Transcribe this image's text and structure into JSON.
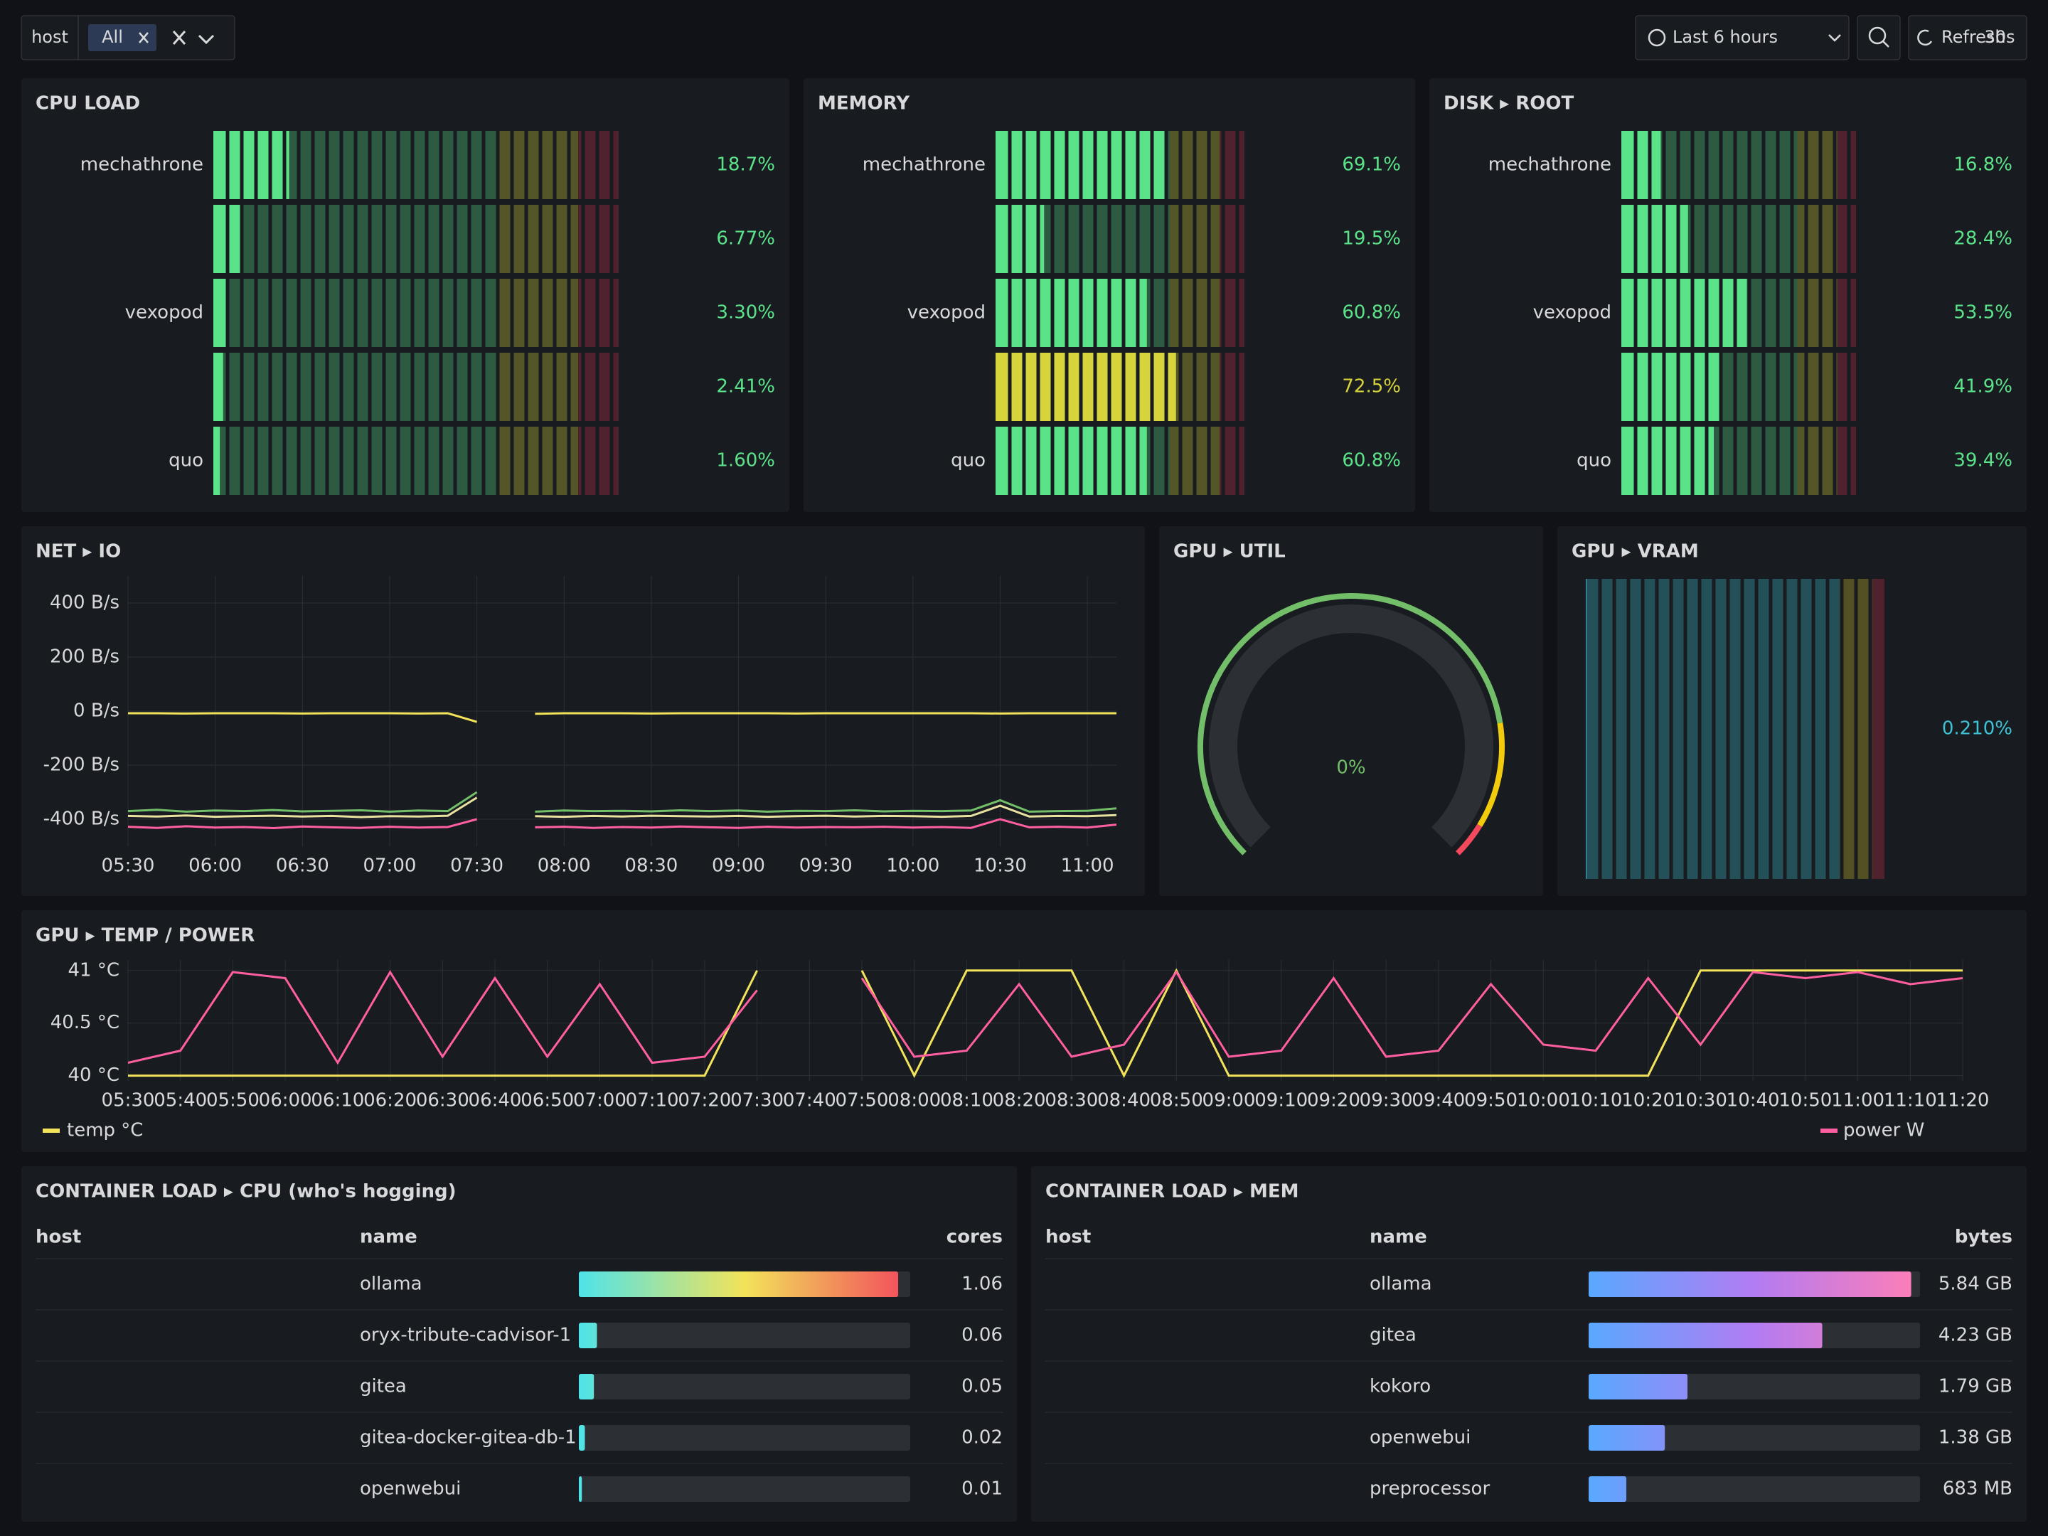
{
  "controls": {
    "filter": {
      "label": "host",
      "value": "All"
    },
    "time_range": "Last 6 hours",
    "refresh": "Refresh",
    "interval": "30s"
  },
  "chart_data": [
    {
      "type": "bargauge",
      "title": "CPU LOAD",
      "categories": [
        "mechathrone",
        null,
        "vexopod",
        null,
        "quo"
      ],
      "values": [
        18.7,
        6.77,
        3.3,
        2.41,
        1.6
      ],
      "value_labels": [
        "18.7%",
        "6.77%",
        "3.30%",
        "2.41%",
        "1.60%"
      ],
      "xlim": [
        0,
        100
      ],
      "thresholds": [
        {
          "value": 0,
          "color": "#5be38a"
        },
        {
          "value": 70,
          "color": "#d6d43a"
        },
        {
          "value": 90,
          "color": "#c4314b"
        }
      ]
    },
    {
      "type": "bargauge",
      "title": "MEMORY",
      "categories": [
        "mechathrone",
        null,
        "vexopod",
        null,
        "quo"
      ],
      "values": [
        69.1,
        19.5,
        60.8,
        72.5,
        60.8
      ],
      "value_labels": [
        "69.1%",
        "19.5%",
        "60.8%",
        "72.5%",
        "60.8%"
      ],
      "xlim": [
        0,
        100
      ],
      "thresholds": [
        {
          "value": 0,
          "color": "#5be38a"
        },
        {
          "value": 70,
          "color": "#d6d43a"
        },
        {
          "value": 90,
          "color": "#c4314b"
        }
      ]
    },
    {
      "type": "bargauge",
      "title": "DISK ▸ ROOT",
      "categories": [
        "mechathrone",
        null,
        "vexopod",
        null,
        "quo"
      ],
      "values": [
        16.8,
        28.4,
        53.5,
        41.9,
        39.4
      ],
      "value_labels": [
        "16.8%",
        "28.4%",
        "53.5%",
        "41.9%",
        "39.4%"
      ],
      "xlim": [
        0,
        100
      ],
      "thresholds": [
        {
          "value": 0,
          "color": "#5be38a"
        },
        {
          "value": 75,
          "color": "#d6d43a"
        },
        {
          "value": 92,
          "color": "#c4314b"
        }
      ]
    },
    {
      "type": "line",
      "title": "NET ▸ IO",
      "x": [
        "05:30",
        "05:40",
        "05:50",
        "06:00",
        "06:10",
        "06:20",
        "06:30",
        "06:40",
        "06:50",
        "07:00",
        "07:10",
        "07:20",
        "07:30",
        "07:40",
        "07:50",
        "08:00",
        "08:10",
        "08:20",
        "08:30",
        "08:40",
        "08:50",
        "09:00",
        "09:10",
        "09:20",
        "09:30",
        "09:40",
        "09:50",
        "10:00",
        "10:10",
        "10:20",
        "10:30",
        "10:40",
        "10:50",
        "11:00",
        "11:10"
      ],
      "xticks": [
        "05:30",
        "06:00",
        "06:30",
        "07:00",
        "07:30",
        "08:00",
        "08:30",
        "09:00",
        "09:30",
        "10:00",
        "10:30",
        "11:00"
      ],
      "ylim": [
        -500,
        500
      ],
      "yticks": [
        {
          "value": 400,
          "label": "400 B/s"
        },
        {
          "value": 200,
          "label": "200 B/s"
        },
        {
          "value": 0,
          "label": "0 B/s"
        },
        {
          "value": -200,
          "label": "-200 B/s"
        },
        {
          "value": -400,
          "label": "-400 B/s"
        }
      ],
      "grid": true,
      "series": [
        {
          "color": "#f2e35a",
          "values": [
            -8,
            -8,
            -9,
            -8,
            -8,
            -8,
            -9,
            -8,
            -8,
            -8,
            -9,
            -8,
            -40,
            null,
            -10,
            -8,
            -8,
            -8,
            -9,
            -8,
            -8,
            -8,
            -8,
            -9,
            -8,
            -8,
            -8,
            -8,
            -8,
            -8,
            -9,
            -8,
            -8,
            -8,
            -8
          ]
        },
        {
          "color": "#73bf69",
          "values": [
            -370,
            -365,
            -372,
            -368,
            -370,
            -366,
            -371,
            -369,
            -367,
            -372,
            -368,
            -370,
            -300,
            null,
            -372,
            -368,
            -370,
            -369,
            -371,
            -367,
            -370,
            -368,
            -372,
            -369,
            -370,
            -367,
            -371,
            -369,
            -370,
            -368,
            -330,
            -372,
            -370,
            -369,
            -360
          ]
        },
        {
          "color": "#e8e2a0",
          "values": [
            -388,
            -390,
            -386,
            -391,
            -389,
            -387,
            -390,
            -388,
            -392,
            -389,
            -390,
            -387,
            -320,
            null,
            -389,
            -391,
            -388,
            -390,
            -387,
            -389,
            -390,
            -388,
            -391,
            -389,
            -387,
            -390,
            -388,
            -389,
            -391,
            -388,
            -350,
            -390,
            -388,
            -389,
            -385
          ]
        },
        {
          "color": "#ff5fa0",
          "values": [
            -428,
            -432,
            -426,
            -431,
            -429,
            -433,
            -427,
            -430,
            -432,
            -428,
            -431,
            -429,
            -400,
            null,
            -430,
            -428,
            -432,
            -429,
            -431,
            -427,
            -430,
            -432,
            -428,
            -431,
            -429,
            -430,
            -428,
            -431,
            -429,
            -432,
            -400,
            -430,
            -428,
            -431,
            -420
          ]
        }
      ]
    },
    {
      "type": "gauge",
      "title": "GPU ▸ UTIL",
      "values": [
        0
      ],
      "value_labels": [
        "0%"
      ],
      "ylim": [
        0,
        100
      ],
      "thresholds": [
        {
          "value": 0,
          "color": "#73bf69"
        },
        {
          "value": 80,
          "color": "#f2cc0c"
        },
        {
          "value": 95,
          "color": "#f2495c"
        }
      ]
    },
    {
      "type": "bargauge",
      "title": "GPU ▸ VRAM",
      "categories": [
        null
      ],
      "values": [
        0.21
      ],
      "value_labels": [
        "0.210%"
      ],
      "xlim": [
        0,
        100
      ],
      "thresholds": [
        {
          "value": 0,
          "color": "#3ec1d3"
        },
        {
          "value": 85,
          "color": "#cfc22a"
        },
        {
          "value": 96,
          "color": "#c4314b"
        }
      ]
    },
    {
      "type": "line",
      "title": "GPU ▸ TEMP / POWER",
      "categories": [
        "05:30",
        "05:40",
        "05:50",
        "06:00",
        "06:10",
        "06:20",
        "06:30",
        "06:40",
        "06:50",
        "07:00",
        "07:10",
        "07:20",
        "07:30",
        "07:40",
        "07:50",
        "08:00",
        "08:10",
        "08:20",
        "08:30",
        "08:40",
        "08:50",
        "09:00",
        "09:10",
        "09:20",
        "09:30",
        "09:40",
        "09:50",
        "10:00",
        "10:10",
        "10:20",
        "10:30",
        "10:40",
        "10:50",
        "11:00",
        "11:10",
        "11:20"
      ],
      "ylim": [
        39.95,
        41.1
      ],
      "yticks": [
        {
          "value": 41,
          "label": "41 °C"
        },
        {
          "value": 40.5,
          "label": "40.5 °C"
        },
        {
          "value": 40,
          "label": "40 °C"
        }
      ],
      "y2lim": [
        0,
        20
      ],
      "grid": true,
      "series": [
        {
          "name": "temp °C",
          "color": "#f2e35a",
          "values": [
            40,
            40,
            40,
            40,
            40,
            40,
            40,
            40,
            40,
            40,
            40,
            40,
            41,
            null,
            41,
            40,
            41,
            41,
            41,
            40,
            41,
            40,
            40,
            40,
            40,
            40,
            40,
            40,
            40,
            40,
            41,
            41,
            41,
            41,
            41,
            41
          ]
        },
        {
          "name": "power W",
          "color": "#ff5fa0",
          "axis": "y2",
          "values": [
            3,
            5,
            18,
            17,
            3,
            18,
            4,
            17,
            4,
            16,
            3,
            4,
            15,
            null,
            17,
            4,
            5,
            16,
            4,
            6,
            18,
            4,
            5,
            17,
            4,
            5,
            16,
            6,
            5,
            17,
            6,
            18,
            17,
            18,
            16,
            17
          ]
        }
      ]
    },
    {
      "type": "table",
      "title": "CONTAINER LOAD ▸ CPU (who's hogging)",
      "columns": [
        "host",
        "name",
        "cores"
      ],
      "categories": [
        "ollama",
        "oryx-tribute-cadvisor-1",
        "gitea",
        "gitea-docker-gitea-db-1",
        "openwebui"
      ],
      "values": [
        1.06,
        0.06,
        0.05,
        0.02,
        0.01
      ],
      "xlim": [
        0,
        1.1
      ],
      "gradient": [
        "#4fe3e8",
        "#f2e35a",
        "#f2495c"
      ]
    },
    {
      "type": "table",
      "title": "CONTAINER LOAD ▸ MEM",
      "columns": [
        "host",
        "name",
        "bytes"
      ],
      "categories": [
        "ollama",
        "gitea",
        "kokoro",
        "openwebui",
        "preprocessor"
      ],
      "values": [
        5840000000,
        4230000000,
        1790000000,
        1380000000,
        683000000
      ],
      "value_labels": [
        "5.84 GB",
        "4.23 GB",
        "1.79 GB",
        "1.38 GB",
        "683 MB"
      ],
      "xlim": [
        0,
        6000000000
      ],
      "gradient": [
        "#5aa8ff",
        "#b27cf2",
        "#ff7eb6"
      ]
    }
  ]
}
